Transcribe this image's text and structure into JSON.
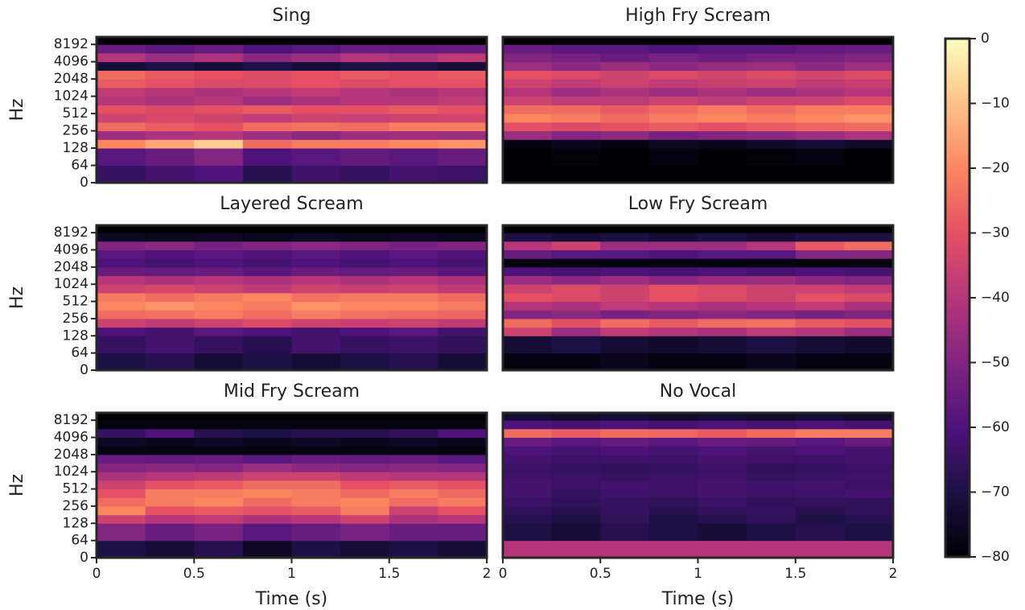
{
  "chart_data": [
    {
      "type": "spectrogram",
      "title": "Sing",
      "ylabel": "Hz",
      "xlim": [
        0,
        2
      ],
      "ylim": [
        0,
        11025
      ],
      "yscale": "log2",
      "yticks": [
        0,
        64,
        128,
        256,
        512,
        1024,
        2048,
        4096,
        8192
      ],
      "xbins": [
        0,
        0.25,
        0.5,
        0.75,
        1,
        1.25,
        1.5,
        1.75,
        2
      ],
      "ybins": [
        0,
        64,
        128,
        181,
        256,
        362,
        512,
        724,
        1024,
        1448,
        2048,
        2896,
        4096,
        5793,
        8192,
        11025
      ],
      "values": [
        [
          -65,
          -62,
          -60,
          -68,
          -63,
          -65,
          -62,
          -64
        ],
        [
          -58,
          -55,
          -50,
          -60,
          -58,
          -56,
          -58,
          -55
        ],
        [
          -20,
          -15,
          -8,
          -25,
          -22,
          -22,
          -20,
          -18
        ],
        [
          -45,
          -42,
          -40,
          -45,
          -48,
          -45,
          -44,
          -45
        ],
        [
          -25,
          -28,
          -30,
          -25,
          -24,
          -25,
          -22,
          -22
        ],
        [
          -35,
          -33,
          -35,
          -38,
          -35,
          -36,
          -35,
          -34
        ],
        [
          -30,
          -32,
          -30,
          -28,
          -30,
          -30,
          -28,
          -30
        ],
        [
          -40,
          -42,
          -40,
          -45,
          -42,
          -40,
          -40,
          -38
        ],
        [
          -38,
          -40,
          -42,
          -40,
          -38,
          -40,
          -42,
          -40
        ],
        [
          -28,
          -30,
          -32,
          -32,
          -30,
          -32,
          -30,
          -30
        ],
        [
          -25,
          -28,
          -30,
          -32,
          -30,
          -28,
          -30,
          -28
        ],
        [
          -72,
          -70,
          -72,
          -70,
          -72,
          -70,
          -70,
          -72
        ],
        [
          -40,
          -45,
          -42,
          -48,
          -45,
          -40,
          -42,
          -38
        ],
        [
          -55,
          -58,
          -55,
          -60,
          -58,
          -55,
          -56,
          -55
        ],
        [
          -80,
          -80,
          -80,
          -80,
          -80,
          -80,
          -80,
          -80
        ]
      ]
    },
    {
      "type": "spectrogram",
      "title": "High Fry Scream",
      "xlim": [
        0,
        2
      ],
      "ylim": [
        0,
        11025
      ],
      "yscale": "log2",
      "xbins": [
        0,
        0.25,
        0.5,
        0.75,
        1,
        1.25,
        1.5,
        1.75,
        2
      ],
      "ybins": [
        0,
        64,
        128,
        181,
        256,
        362,
        512,
        724,
        1024,
        1448,
        2048,
        2896,
        4096,
        5793,
        8192,
        11025
      ],
      "values": [
        [
          -80,
          -80,
          -80,
          -80,
          -80,
          -80,
          -80,
          -80
        ],
        [
          -80,
          -79,
          -80,
          -78,
          -80,
          -79,
          -78,
          -80
        ],
        [
          -78,
          -76,
          -78,
          -75,
          -76,
          -74,
          -72,
          -74
        ],
        [
          -45,
          -50,
          -48,
          -52,
          -50,
          -48,
          -45,
          -42
        ],
        [
          -30,
          -32,
          -30,
          -28,
          -30,
          -28,
          -26,
          -25
        ],
        [
          -20,
          -22,
          -25,
          -22,
          -20,
          -22,
          -20,
          -18
        ],
        [
          -25,
          -25,
          -28,
          -25,
          -22,
          -25,
          -22,
          -22
        ],
        [
          -35,
          -38,
          -38,
          -35,
          -38,
          -35,
          -35,
          -32
        ],
        [
          -40,
          -45,
          -42,
          -45,
          -42,
          -45,
          -42,
          -40
        ],
        [
          -35,
          -38,
          -35,
          -38,
          -36,
          -35,
          -38,
          -36
        ],
        [
          -30,
          -32,
          -35,
          -32,
          -34,
          -32,
          -34,
          -32
        ],
        [
          -45,
          -48,
          -45,
          -48,
          -46,
          -45,
          -48,
          -45
        ],
        [
          -50,
          -52,
          -55,
          -52,
          -54,
          -52,
          -52,
          -50
        ],
        [
          -55,
          -58,
          -58,
          -60,
          -58,
          -58,
          -56,
          -55
        ],
        [
          -80,
          -80,
          -80,
          -80,
          -80,
          -80,
          -80,
          -80
        ]
      ]
    },
    {
      "type": "spectrogram",
      "title": "Layered Scream",
      "ylabel": "Hz",
      "xlim": [
        0,
        2
      ],
      "ylim": [
        0,
        11025
      ],
      "yscale": "log2",
      "yticks": [
        0,
        64,
        128,
        256,
        512,
        1024,
        2048,
        4096,
        8192
      ],
      "xbins": [
        0,
        0.25,
        0.5,
        0.75,
        1,
        1.25,
        1.5,
        1.75,
        2
      ],
      "ybins": [
        0,
        64,
        128,
        181,
        256,
        362,
        512,
        724,
        1024,
        1448,
        2048,
        2896,
        4096,
        5793,
        8192,
        11025
      ],
      "values": [
        [
          -70,
          -68,
          -72,
          -70,
          -72,
          -70,
          -68,
          -72
        ],
        [
          -65,
          -62,
          -65,
          -68,
          -62,
          -65,
          -64,
          -66
        ],
        [
          -60,
          -62,
          -58,
          -60,
          -62,
          -60,
          -58,
          -62
        ],
        [
          -35,
          -38,
          -35,
          -32,
          -35,
          -36,
          -35,
          -38
        ],
        [
          -25,
          -24,
          -22,
          -25,
          -22,
          -24,
          -25,
          -26
        ],
        [
          -20,
          -18,
          -20,
          -22,
          -18,
          -20,
          -20,
          -22
        ],
        [
          -22,
          -25,
          -22,
          -20,
          -24,
          -22,
          -22,
          -25
        ],
        [
          -35,
          -33,
          -35,
          -38,
          -35,
          -36,
          -35,
          -38
        ],
        [
          -40,
          -42,
          -40,
          -42,
          -40,
          -42,
          -40,
          -42
        ],
        [
          -55,
          -56,
          -55,
          -58,
          -55,
          -56,
          -55,
          -58
        ],
        [
          -60,
          -62,
          -60,
          -62,
          -60,
          -62,
          -60,
          -62
        ],
        [
          -58,
          -60,
          -58,
          -60,
          -58,
          -60,
          -58,
          -60
        ],
        [
          -50,
          -48,
          -52,
          -50,
          -48,
          -50,
          -52,
          -50
        ],
        [
          -75,
          -76,
          -75,
          -76,
          -75,
          -76,
          -75,
          -76
        ],
        [
          -80,
          -80,
          -80,
          -80,
          -80,
          -80,
          -80,
          -80
        ]
      ]
    },
    {
      "type": "spectrogram",
      "title": "Low Fry Scream",
      "xlim": [
        0,
        2
      ],
      "ylim": [
        0,
        11025
      ],
      "yscale": "log2",
      "xbins": [
        0,
        0.25,
        0.5,
        0.75,
        1,
        1.25,
        1.5,
        1.75,
        2
      ],
      "ybins": [
        0,
        64,
        128,
        181,
        256,
        362,
        512,
        724,
        1024,
        1448,
        2048,
        2896,
        4096,
        5793,
        8192,
        11025
      ],
      "values": [
        [
          -78,
          -78,
          -76,
          -78,
          -78,
          -76,
          -78,
          -78
        ],
        [
          -72,
          -70,
          -72,
          -74,
          -72,
          -70,
          -72,
          -74
        ],
        [
          -35,
          -45,
          -38,
          -40,
          -42,
          -38,
          -40,
          -45
        ],
        [
          -25,
          -30,
          -25,
          -28,
          -25,
          -24,
          -28,
          -30
        ],
        [
          -50,
          -48,
          -52,
          -50,
          -48,
          -50,
          -52,
          -50
        ],
        [
          -40,
          -42,
          -38,
          -40,
          -42,
          -40,
          -38,
          -42
        ],
        [
          -30,
          -32,
          -35,
          -30,
          -32,
          -35,
          -30,
          -32
        ],
        [
          -35,
          -32,
          -35,
          -30,
          -32,
          -35,
          -35,
          -38
        ],
        [
          -45,
          -48,
          -45,
          -48,
          -46,
          -45,
          -48,
          -50
        ],
        [
          -60,
          -62,
          -60,
          -62,
          -60,
          -62,
          -60,
          -62
        ],
        [
          -78,
          -78,
          -78,
          -78,
          -78,
          -78,
          -78,
          -78
        ],
        [
          -55,
          -58,
          -58,
          -60,
          -58,
          -58,
          -50,
          -50
        ],
        [
          -40,
          -35,
          -45,
          -45,
          -45,
          -40,
          -28,
          -25
        ],
        [
          -70,
          -72,
          -70,
          -72,
          -70,
          -72,
          -70,
          -70
        ],
        [
          -80,
          -80,
          -80,
          -80,
          -80,
          -80,
          -80,
          -80
        ]
      ]
    },
    {
      "type": "spectrogram",
      "title": "Mid Fry Scream",
      "xlabel": "Time (s)",
      "ylabel": "Hz",
      "xlim": [
        0,
        2
      ],
      "ylim": [
        0,
        11025
      ],
      "yscale": "log2",
      "xticks": [
        0,
        0.5,
        1,
        1.5,
        2
      ],
      "yticks": [
        0,
        64,
        128,
        256,
        512,
        1024,
        2048,
        4096,
        8192
      ],
      "xbins": [
        0,
        0.25,
        0.5,
        0.75,
        1,
        1.25,
        1.5,
        1.75,
        2
      ],
      "ybins": [
        0,
        64,
        128,
        181,
        256,
        362,
        512,
        724,
        1024,
        1448,
        2048,
        2896,
        4096,
        5793,
        8192,
        11025
      ],
      "values": [
        [
          -70,
          -72,
          -68,
          -75,
          -70,
          -72,
          -70,
          -72
        ],
        [
          -50,
          -55,
          -52,
          -58,
          -55,
          -52,
          -55,
          -55
        ],
        [
          -35,
          -40,
          -38,
          -42,
          -40,
          -35,
          -42,
          -40
        ],
        [
          -20,
          -30,
          -28,
          -30,
          -28,
          -22,
          -35,
          -30
        ],
        [
          -25,
          -22,
          -20,
          -25,
          -22,
          -20,
          -25,
          -22
        ],
        [
          -30,
          -22,
          -22,
          -20,
          -22,
          -25,
          -22,
          -25
        ],
        [
          -35,
          -30,
          -28,
          -25,
          -25,
          -30,
          -28,
          -30
        ],
        [
          -42,
          -40,
          -38,
          -35,
          -35,
          -38,
          -40,
          -40
        ],
        [
          -50,
          -48,
          -50,
          -45,
          -48,
          -50,
          -48,
          -50
        ],
        [
          -55,
          -56,
          -55,
          -58,
          -55,
          -56,
          -55,
          -58
        ],
        [
          -78,
          -78,
          -78,
          -78,
          -78,
          -78,
          -78,
          -78
        ],
        [
          -75,
          -76,
          -75,
          -76,
          -75,
          -76,
          -75,
          -76
        ],
        [
          -65,
          -60,
          -68,
          -70,
          -68,
          -68,
          -66,
          -60
        ],
        [
          -78,
          -78,
          -78,
          -78,
          -78,
          -78,
          -78,
          -78
        ],
        [
          -80,
          -80,
          -80,
          -80,
          -80,
          -80,
          -80,
          -80
        ]
      ]
    },
    {
      "type": "spectrogram",
      "title": "No Vocal",
      "xlabel": "Time (s)",
      "xlim": [
        0,
        2
      ],
      "ylim": [
        0,
        11025
      ],
      "yscale": "log2",
      "xticks": [
        0,
        0.5,
        1,
        1.5,
        2
      ],
      "xbins": [
        0,
        0.25,
        0.5,
        0.75,
        1,
        1.25,
        1.5,
        1.75,
        2
      ],
      "ybins": [
        0,
        64,
        128,
        181,
        256,
        362,
        512,
        724,
        1024,
        1448,
        2048,
        2896,
        4096,
        5793,
        8192,
        11025
      ],
      "values": [
        [
          -40,
          -40,
          -40,
          -40,
          -40,
          -40,
          -40,
          -40
        ],
        [
          -70,
          -72,
          -68,
          -70,
          -72,
          -70,
          -68,
          -70
        ],
        [
          -68,
          -70,
          -66,
          -70,
          -68,
          -66,
          -70,
          -68
        ],
        [
          -66,
          -68,
          -65,
          -68,
          -66,
          -65,
          -68,
          -66
        ],
        [
          -64,
          -66,
          -65,
          -66,
          -64,
          -66,
          -65,
          -66
        ],
        [
          -62,
          -65,
          -63,
          -64,
          -62,
          -64,
          -63,
          -62
        ],
        [
          -62,
          -64,
          -62,
          -64,
          -62,
          -63,
          -62,
          -64
        ],
        [
          -63,
          -64,
          -65,
          -64,
          -63,
          -65,
          -64,
          -63
        ],
        [
          -64,
          -65,
          -66,
          -65,
          -64,
          -66,
          -65,
          -64
        ],
        [
          -62,
          -64,
          -63,
          -64,
          -62,
          -63,
          -64,
          -62
        ],
        [
          -60,
          -62,
          -60,
          -62,
          -60,
          -62,
          -60,
          -62
        ],
        [
          -55,
          -58,
          -56,
          -58,
          -55,
          -56,
          -58,
          -55
        ],
        [
          -25,
          -28,
          -25,
          -26,
          -28,
          -25,
          -22,
          -22
        ],
        [
          -60,
          -62,
          -60,
          -62,
          -60,
          -62,
          -60,
          -62
        ],
        [
          -72,
          -74,
          -72,
          -74,
          -72,
          -74,
          -72,
          -74
        ]
      ]
    },
    {
      "type": "colorbar",
      "ylim": [
        -80,
        0
      ],
      "colors": [
        "#000004",
        "#1c1044",
        "#4f127b",
        "#812581",
        "#b5367a",
        "#e55064",
        "#fb8761",
        "#fec287",
        "#fcfdbf"
      ],
      "yticks": [
        0,
        {
          "value": -10,
          "label": "−10"
        },
        {
          "value": -20,
          "label": "−20"
        },
        {
          "value": -30,
          "label": "−30"
        },
        {
          "value": -40,
          "label": "−40"
        },
        {
          "value": -50,
          "label": "−50"
        },
        {
          "value": -60,
          "label": "−60"
        },
        {
          "value": -70,
          "label": "−70"
        },
        {
          "value": -80,
          "label": "−80"
        }
      ]
    }
  ]
}
